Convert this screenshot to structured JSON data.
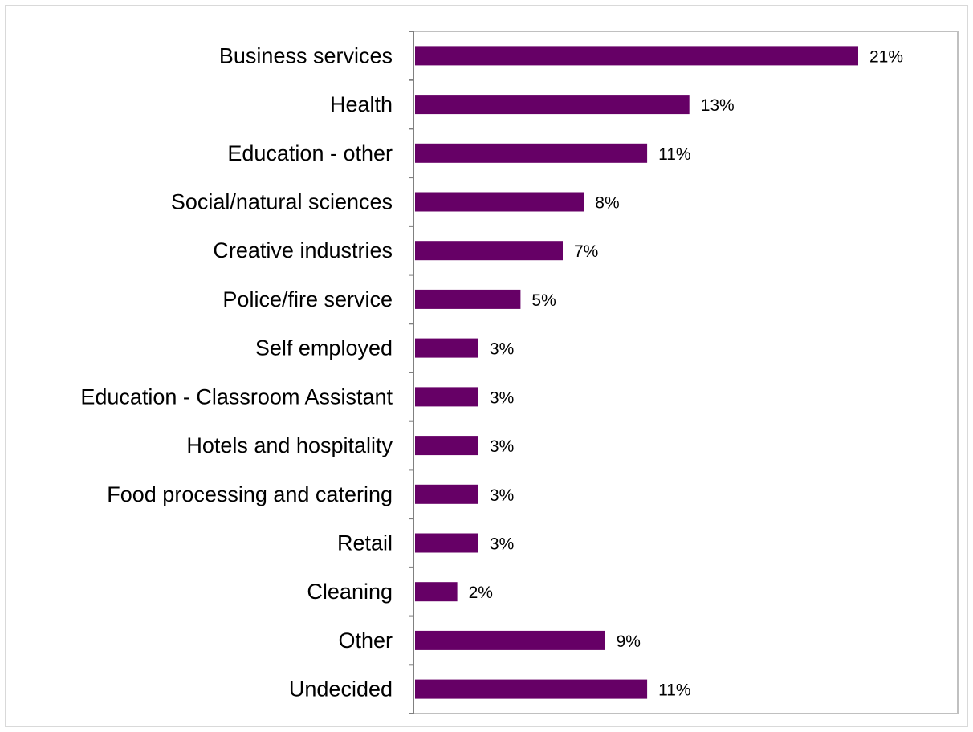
{
  "colors": {
    "bar": "#660066",
    "axis": "#808080",
    "plot_border": "#c0c0c0",
    "frame_border": "#d9d9d9"
  },
  "chart_data": {
    "type": "bar",
    "orientation": "horizontal",
    "title": "",
    "xlabel": "",
    "ylabel": "",
    "categories": [
      "Business services",
      "Health",
      "Education - other",
      "Social/natural sciences",
      "Creative industries",
      "Police/fire service",
      "Self employed",
      "Education - Classroom Assistant",
      "Hotels and hospitality",
      "Food processing and catering",
      "Retail",
      "Cleaning",
      "Other",
      "Undecided"
    ],
    "values": [
      21,
      13,
      11,
      8,
      7,
      5,
      3,
      3,
      3,
      3,
      3,
      2,
      9,
      11
    ],
    "value_labels": [
      "21%",
      "13%",
      "11%",
      "8%",
      "7%",
      "5%",
      "3%",
      "3%",
      "3%",
      "3%",
      "3%",
      "2%",
      "9%",
      "11%"
    ],
    "unit": "%",
    "xlim": [
      0,
      25
    ],
    "grid": false,
    "legend": "none"
  }
}
